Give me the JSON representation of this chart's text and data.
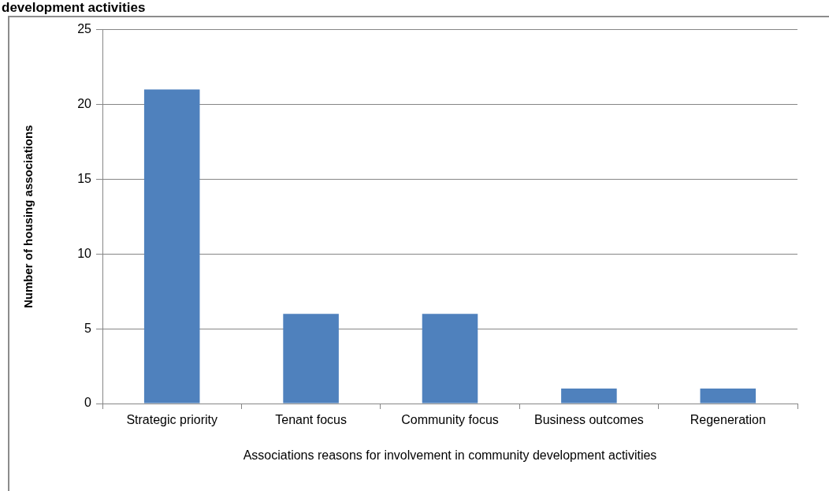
{
  "chart_data": {
    "type": "bar",
    "title": "development activities",
    "xlabel": "Associations reasons for involvement in community development activities",
    "ylabel": "Number of housing associations",
    "categories": [
      "Strategic priority",
      "Tenant focus",
      "Community focus",
      "Business outcomes",
      "Regeneration"
    ],
    "values": [
      21,
      6,
      6,
      1,
      1
    ],
    "color": "#4f81bd",
    "ylim": [
      0,
      25
    ],
    "yticks": [
      0,
      5,
      10,
      15,
      20,
      25
    ],
    "grid": "y"
  }
}
